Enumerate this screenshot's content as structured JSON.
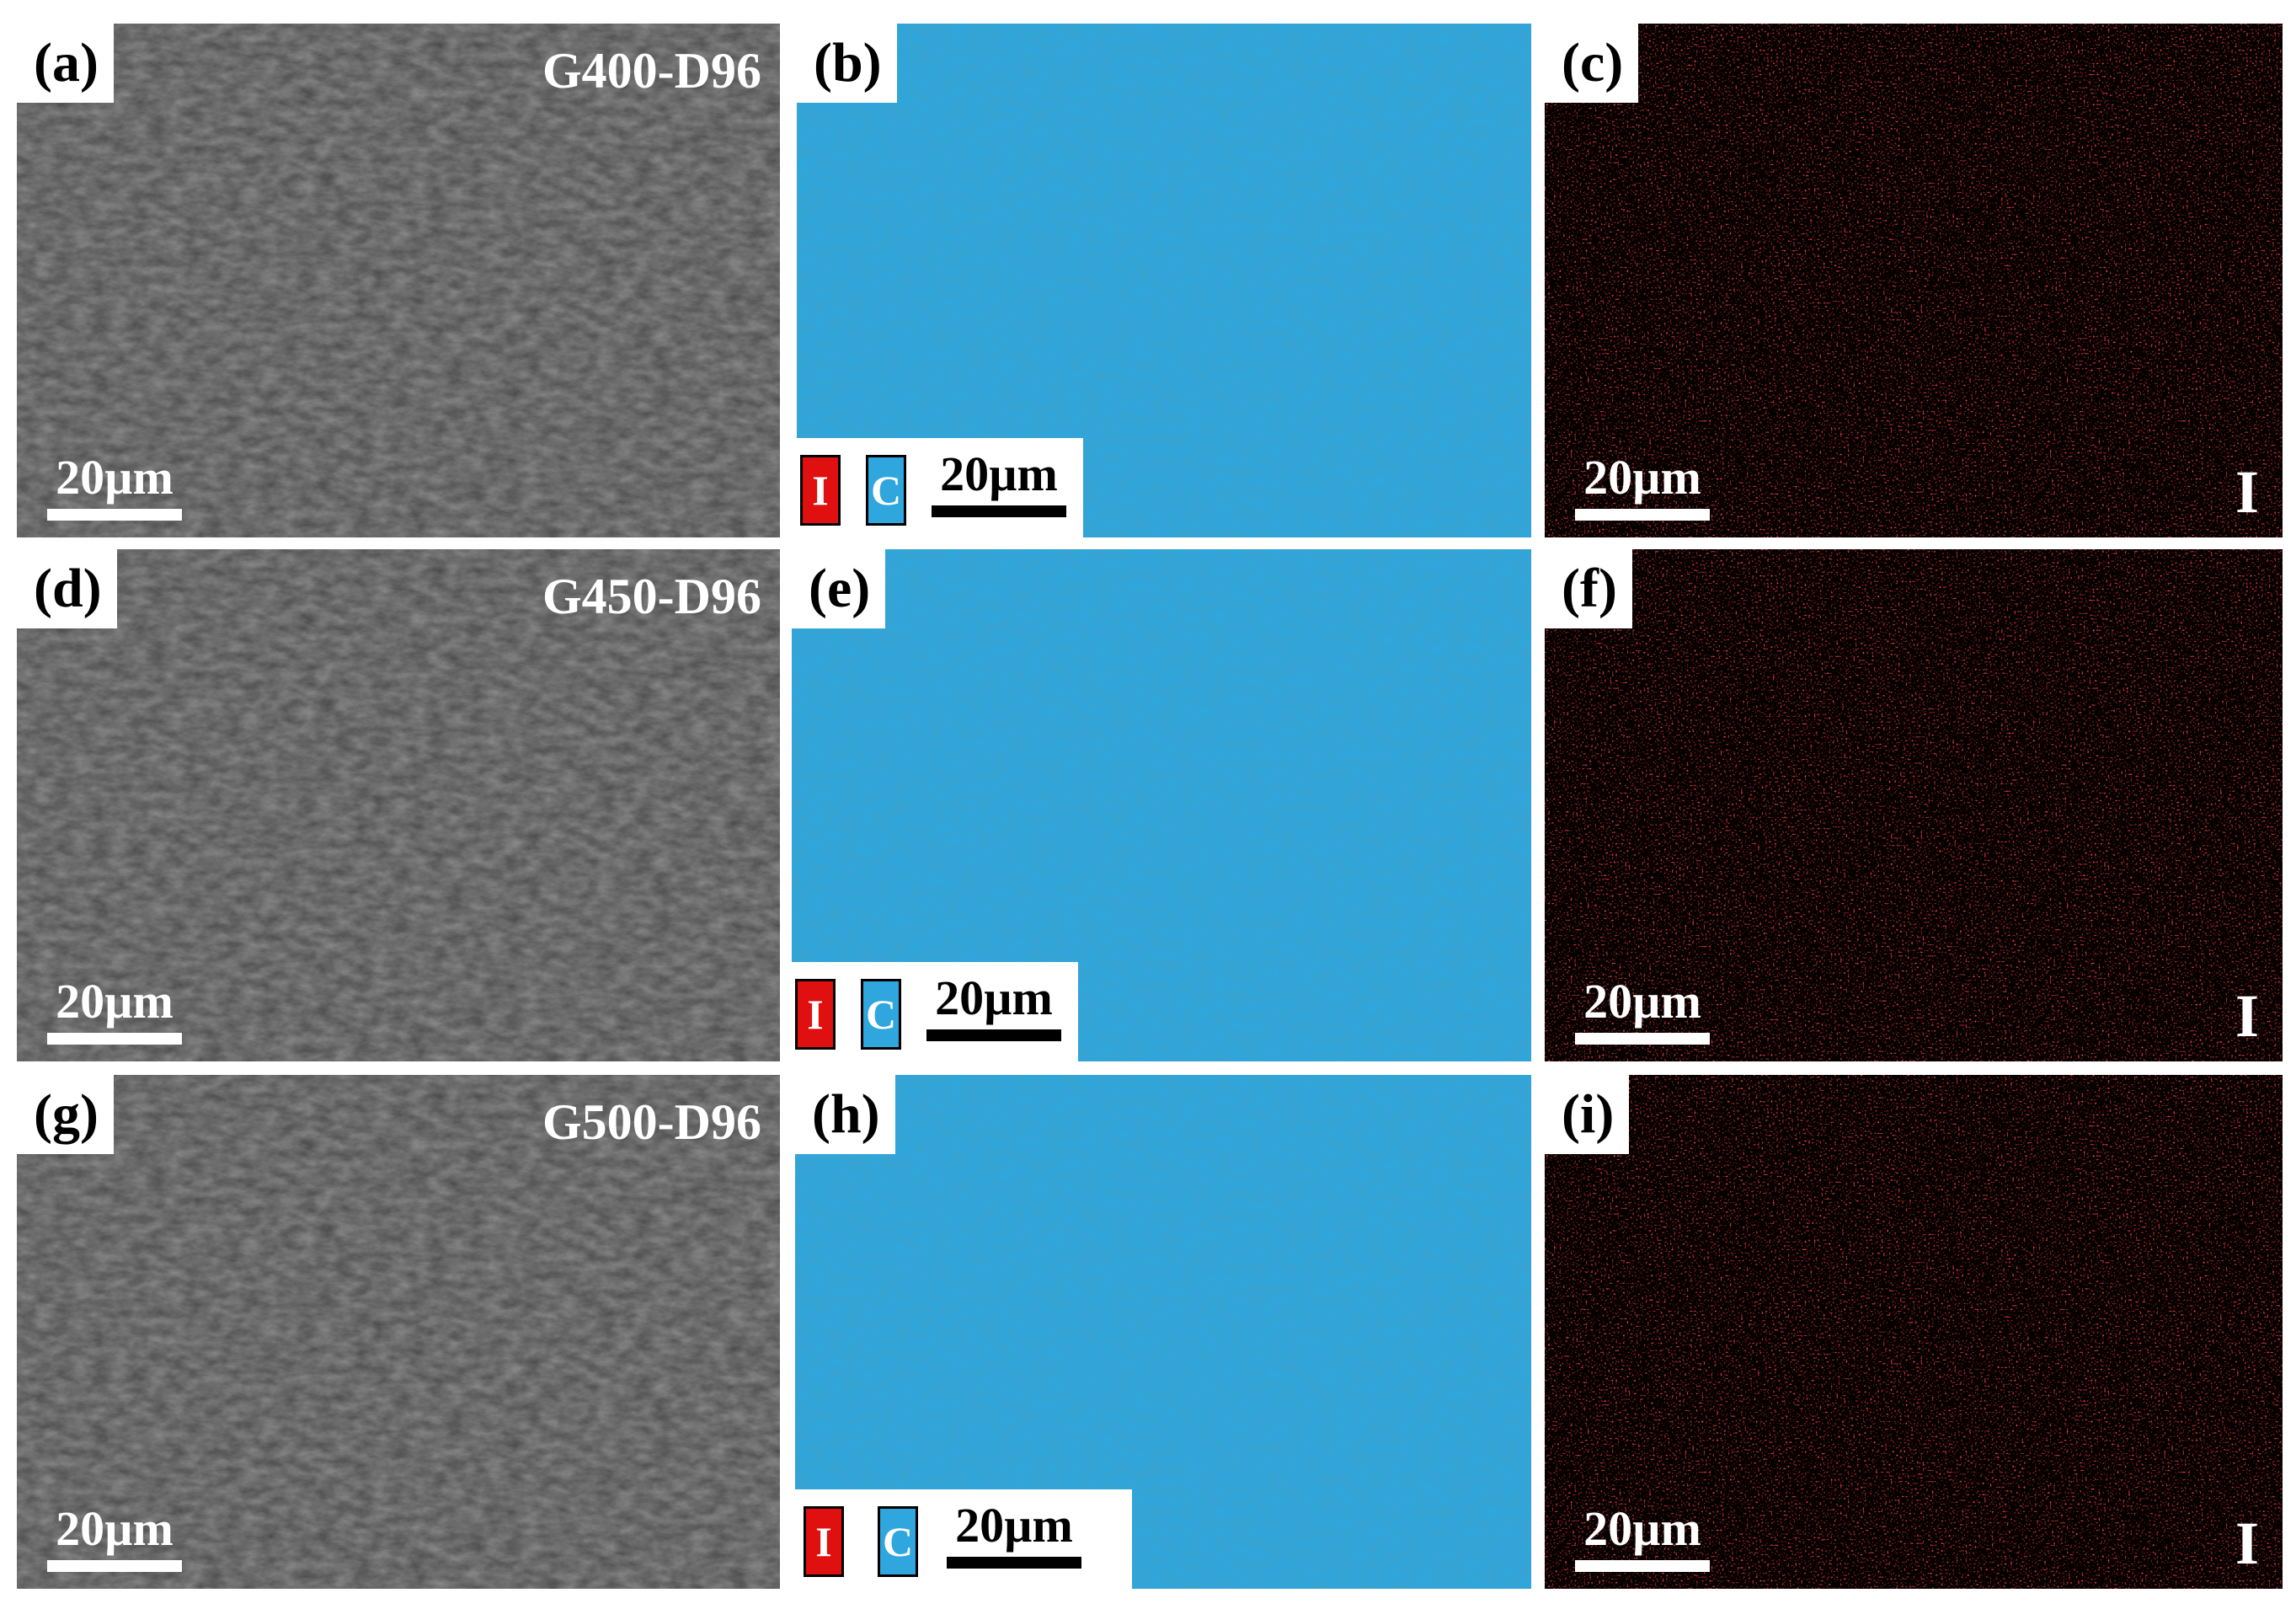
{
  "colors": {
    "sem": "#4c4c4c",
    "carbon": "#2fa6dd",
    "iron_map_bg": "#050000",
    "iron": "#e01010"
  },
  "scale_label": "20µm",
  "legend": {
    "iron_letter": "I",
    "carbon_letter": "C"
  },
  "rows": [
    {
      "sample": "G400-D96",
      "sem": {
        "label": "(a)"
      },
      "carbon_map": {
        "label": "(b)"
      },
      "iron_map": {
        "label": "(c)",
        "element": "I"
      }
    },
    {
      "sample": "G450-D96",
      "sem": {
        "label": "(d)"
      },
      "carbon_map": {
        "label": "(e)"
      },
      "iron_map": {
        "label": "(f)",
        "element": "I"
      }
    },
    {
      "sample": "G500-D96",
      "sem": {
        "label": "(g)"
      },
      "carbon_map": {
        "label": "(h)"
      },
      "iron_map": {
        "label": "(i)",
        "element": "I"
      }
    }
  ]
}
